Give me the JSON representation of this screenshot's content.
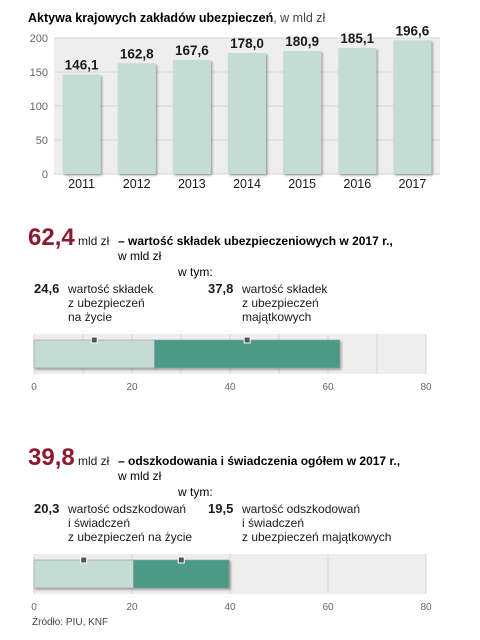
{
  "chart_data": [
    {
      "type": "bar",
      "title": "Aktywa krajowych zakładów ubezpieczeń",
      "title_unit": ", w mld zł",
      "categories": [
        "2011",
        "2012",
        "2013",
        "2014",
        "2015",
        "2016",
        "2017"
      ],
      "values": [
        146.1,
        162.8,
        167.6,
        178.0,
        180.9,
        185.1,
        196.6
      ],
      "value_labels": [
        "146,1",
        "162,8",
        "167,6",
        "178,0",
        "180,9",
        "185,1",
        "196,6"
      ],
      "ylim": [
        0,
        200
      ],
      "yticks": [
        0,
        50,
        100,
        150,
        200
      ],
      "grid": true,
      "bar_color": "#c3dcd4"
    },
    {
      "type": "bar",
      "orientation": "horizontal-stacked",
      "total_label": "62,4",
      "total_unit": "mld zł",
      "description": "– wartość składek ubezpieczeniowych w 2017 r.,",
      "unit_line": "w mld zł",
      "subheader": "w tym:",
      "xlim": [
        0,
        80
      ],
      "xticks": [
        0,
        10,
        20,
        30,
        40,
        50,
        60,
        70,
        80
      ],
      "xtick_labels": [
        "0",
        "",
        "20",
        "",
        "40",
        "",
        "60",
        "",
        "80"
      ],
      "segments": [
        {
          "value": 24.6,
          "label": "24,6",
          "text": [
            "wartość składek",
            "z ubezpieczeń",
            "na życie"
          ],
          "color": "#c3dcd4"
        },
        {
          "value": 37.8,
          "label": "37,8",
          "text": [
            "wartość składek",
            "z ubezpieczeń",
            "majątkowych"
          ],
          "color": "#4b9a88"
        }
      ]
    },
    {
      "type": "bar",
      "orientation": "horizontal-stacked",
      "total_label": "39,8",
      "total_unit": "mld zł",
      "description": "– odszkodowania i świadczenia ogółem w 2017 r.,",
      "unit_line": "w mld zł",
      "subheader": "w tym:",
      "xlim": [
        0,
        80
      ],
      "xticks": [
        0,
        20,
        40,
        60,
        80
      ],
      "xtick_labels": [
        "0",
        "20",
        "40",
        "60",
        "80"
      ],
      "segments": [
        {
          "value": 20.3,
          "label": "20,3",
          "text": [
            "wartość odszkodowań",
            "i świadczeń",
            "z ubezpieczeń na życie"
          ],
          "color": "#c3dcd4"
        },
        {
          "value": 19.5,
          "label": "19,5",
          "text": [
            "wartość odszkodowań",
            "i świadczeń",
            "z ubezpieczeń majątkowych"
          ],
          "color": "#4b9a88"
        }
      ]
    }
  ],
  "source": "Źródło: PIU, KNF",
  "colors": {
    "accent": "#8b1a2e",
    "panel": "#eeeeee",
    "grid": "#d6d6d6",
    "text": "#1a1a1a",
    "axis": "#666666"
  }
}
